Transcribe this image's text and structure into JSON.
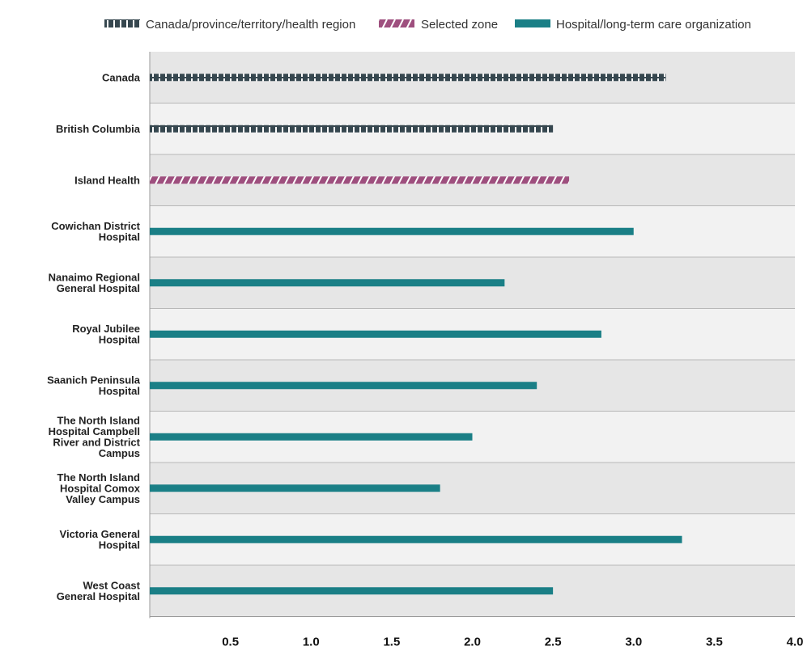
{
  "chart_data": {
    "type": "bar",
    "orientation": "horizontal",
    "categories": [
      "Canada",
      "British Columbia",
      "Island Health",
      "Cowichan District Hospital",
      "Nanaimo Regional General Hospital",
      "Royal Jubilee Hospital",
      "Saanich Peninsula Hospital",
      "The North Island Hospital Campbell River and District Campus",
      "The North Island Hospital Comox Valley Campus",
      "Victoria General Hospital",
      "West Coast General Hospital"
    ],
    "category_lines": [
      [
        "Canada"
      ],
      [
        "British Columbia"
      ],
      [
        "Island Health"
      ],
      [
        "Cowichan District",
        "Hospital"
      ],
      [
        "Nanaimo Regional",
        "General Hospital"
      ],
      [
        "Royal Jubilee",
        "Hospital"
      ],
      [
        "Saanich Peninsula",
        "Hospital"
      ],
      [
        "The North Island",
        "Hospital Campbell",
        "River and District",
        "Campus"
      ],
      [
        "The North Island",
        "Hospital Comox",
        "Valley Campus"
      ],
      [
        "Victoria General",
        "Hospital"
      ],
      [
        "West Coast",
        "General Hospital"
      ]
    ],
    "values": [
      3.2,
      2.5,
      2.6,
      3.0,
      2.2,
      2.8,
      2.4,
      2.0,
      1.8,
      3.3,
      2.5
    ],
    "series_type": [
      "region",
      "region",
      "zone",
      "org",
      "org",
      "org",
      "org",
      "org",
      "org",
      "org",
      "org"
    ],
    "legend": [
      {
        "key": "region",
        "label": "Canada/province/territory/health region"
      },
      {
        "key": "zone",
        "label": "Selected zone"
      },
      {
        "key": "org",
        "label": "Hospital/long-term care organization"
      }
    ],
    "xlim": [
      0,
      4.0
    ],
    "xticks": [
      0.5,
      1.0,
      1.5,
      2.0,
      2.5,
      3.0,
      3.5,
      4.0
    ],
    "xtick_labels": [
      "0.5",
      "1.0",
      "1.5",
      "2.0",
      "2.5",
      "3.0",
      "3.5",
      "4.0"
    ],
    "title": "",
    "xlabel": "",
    "ylabel": "",
    "legend_position": "top",
    "colors": {
      "region": "#36474f",
      "zone": "#9e4f7e",
      "org": "#1a7f86",
      "row_dark": "#e6e6e6",
      "row_light": "#f2f2f2"
    }
  }
}
